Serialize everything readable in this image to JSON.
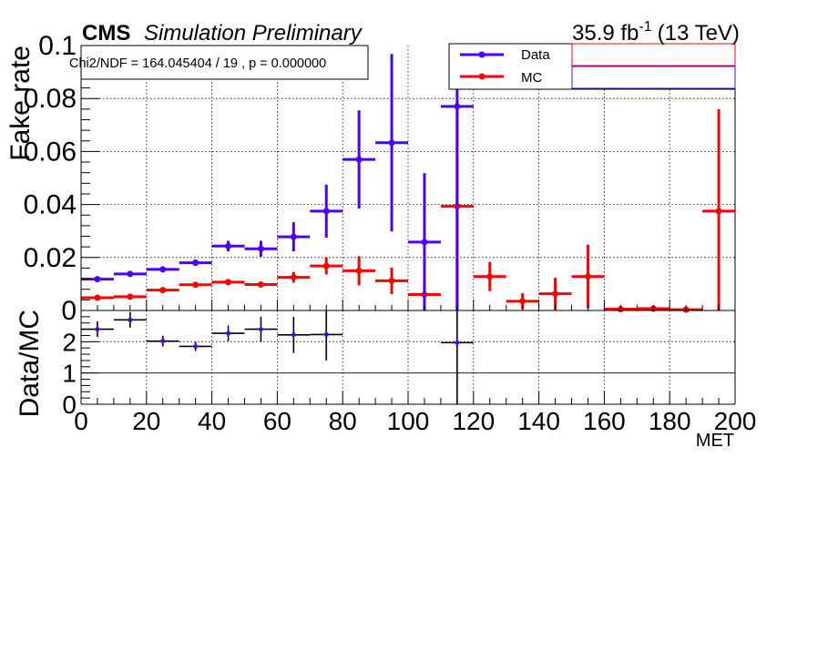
{
  "header": {
    "experiment": "CMS",
    "status": "Simulation Preliminary",
    "lumi_value": "35.9 fb",
    "lumi_exp": "-1",
    "energy": "(13 TeV)"
  },
  "fit_text": "Chi2/NDF = 164.045404 / 19 , p = 0.000000",
  "colors": {
    "data": "#4b00ff",
    "mc": "#ff0000",
    "ratio": "#000000",
    "ratio_marker": "#4b00ff",
    "grid": "#000000"
  },
  "chart_data": [
    {
      "type": "scatter",
      "panel": "main",
      "xlabel": "",
      "ylabel": "Fake rate",
      "xlim": [
        0,
        200
      ],
      "ylim": [
        0,
        0.1
      ],
      "grid": true,
      "legend_placement": "top-right",
      "x_ticks": [
        "0",
        "20",
        "40",
        "60",
        "80",
        "100",
        "120",
        "140",
        "160",
        "180",
        "200"
      ],
      "y_ticks": [
        "0",
        "0.02",
        "0.04",
        "0.06",
        "0.08",
        "0.1"
      ],
      "series": [
        {
          "name": "Data",
          "color": "#4b00ff",
          "points": [
            {
              "x": 5,
              "xerr": 5,
              "y": 0.0118,
              "yerr": 0.0008
            },
            {
              "x": 15,
              "xerr": 5,
              "y": 0.0138,
              "yerr": 0.0008
            },
            {
              "x": 25,
              "xerr": 5,
              "y": 0.0155,
              "yerr": 0.0009
            },
            {
              "x": 35,
              "xerr": 5,
              "y": 0.018,
              "yerr": 0.0012
            },
            {
              "x": 45,
              "xerr": 5,
              "y": 0.0243,
              "yerr": 0.002
            },
            {
              "x": 55,
              "xerr": 5,
              "y": 0.0233,
              "yerr": 0.003
            },
            {
              "x": 65,
              "xerr": 5,
              "y": 0.0278,
              "yerr": 0.0055
            },
            {
              "x": 75,
              "xerr": 5,
              "y": 0.0375,
              "yerr": 0.01
            },
            {
              "x": 85,
              "xerr": 5,
              "y": 0.057,
              "yerr": 0.0185
            },
            {
              "x": 95,
              "xerr": 5,
              "y": 0.0633,
              "yerr": 0.0335
            },
            {
              "x": 105,
              "xerr": 5,
              "y": 0.0258,
              "yerr": 0.026
            },
            {
              "x": 115,
              "xerr": 5,
              "y": 0.077,
              "yerr": 0.077
            }
          ]
        },
        {
          "name": "MC",
          "color": "#ff0000",
          "points": [
            {
              "x": 5,
              "xerr": 5,
              "y": 0.0048,
              "yerr": 0.0004
            },
            {
              "x": 15,
              "xerr": 5,
              "y": 0.0052,
              "yerr": 0.0004
            },
            {
              "x": 25,
              "xerr": 5,
              "y": 0.0077,
              "yerr": 0.0006
            },
            {
              "x": 35,
              "xerr": 5,
              "y": 0.0097,
              "yerr": 0.0007
            },
            {
              "x": 45,
              "xerr": 5,
              "y": 0.0107,
              "yerr": 0.0008
            },
            {
              "x": 55,
              "xerr": 5,
              "y": 0.0098,
              "yerr": 0.001
            },
            {
              "x": 65,
              "xerr": 5,
              "y": 0.0125,
              "yerr": 0.002
            },
            {
              "x": 75,
              "xerr": 5,
              "y": 0.0168,
              "yerr": 0.0032
            },
            {
              "x": 85,
              "xerr": 5,
              "y": 0.015,
              "yerr": 0.0055
            },
            {
              "x": 95,
              "xerr": 5,
              "y": 0.0112,
              "yerr": 0.005
            },
            {
              "x": 105,
              "xerr": 5,
              "y": 0.006,
              "yerr": 0.004
            },
            {
              "x": 115,
              "xerr": 5,
              "y": 0.0393,
              "yerr": 0.0395
            },
            {
              "x": 125,
              "xerr": 5,
              "y": 0.0128,
              "yerr": 0.0055
            },
            {
              "x": 135,
              "xerr": 5,
              "y": 0.0035,
              "yerr": 0.003
            },
            {
              "x": 145,
              "xerr": 5,
              "y": 0.0063,
              "yerr": 0.006
            },
            {
              "x": 155,
              "xerr": 5,
              "y": 0.0128,
              "yerr": 0.012
            },
            {
              "x": 165,
              "xerr": 5,
              "y": 0.0005,
              "yerr": 0.0005
            },
            {
              "x": 175,
              "xerr": 5,
              "y": 0.0007,
              "yerr": 0.0005
            },
            {
              "x": 185,
              "xerr": 5,
              "y": 0.0003,
              "yerr": 0.0003
            },
            {
              "x": 195,
              "xerr": 5,
              "y": 0.0375,
              "yerr": 0.0385
            }
          ]
        }
      ],
      "legend_entries": [
        {
          "label": "Data",
          "color": "#4b00ff"
        },
        {
          "label": "MC",
          "color": "#ff0000"
        }
      ]
    },
    {
      "type": "scatter",
      "panel": "ratio",
      "xlabel": "MET",
      "ylabel": "Data/MC",
      "xlim": [
        0,
        200
      ],
      "ylim": [
        0,
        3
      ],
      "grid": true,
      "reference_lines": [
        1,
        2
      ],
      "x_ticks": [
        "0",
        "20",
        "40",
        "60",
        "80",
        "100",
        "120",
        "140",
        "160",
        "180",
        "200"
      ],
      "y_ticks": [
        "0",
        "1",
        "2"
      ],
      "series": [
        {
          "color": "#000000",
          "points": [
            {
              "x": 5,
              "xerr": 5,
              "y": 2.4,
              "yerr": 0.25
            },
            {
              "x": 15,
              "xerr": 5,
              "y": 2.7,
              "yerr": 0.25
            },
            {
              "x": 25,
              "xerr": 5,
              "y": 2.02,
              "yerr": 0.17
            },
            {
              "x": 35,
              "xerr": 5,
              "y": 1.85,
              "yerr": 0.15
            },
            {
              "x": 45,
              "xerr": 5,
              "y": 2.27,
              "yerr": 0.25
            },
            {
              "x": 55,
              "xerr": 5,
              "y": 2.4,
              "yerr": 0.4
            },
            {
              "x": 65,
              "xerr": 5,
              "y": 2.22,
              "yerr": 0.58
            },
            {
              "x": 75,
              "xerr": 5,
              "y": 2.23,
              "yerr": 0.83
            },
            {
              "x": 115,
              "xerr": 5,
              "y": 1.97,
              "yerr": 1.97
            }
          ]
        }
      ]
    }
  ]
}
